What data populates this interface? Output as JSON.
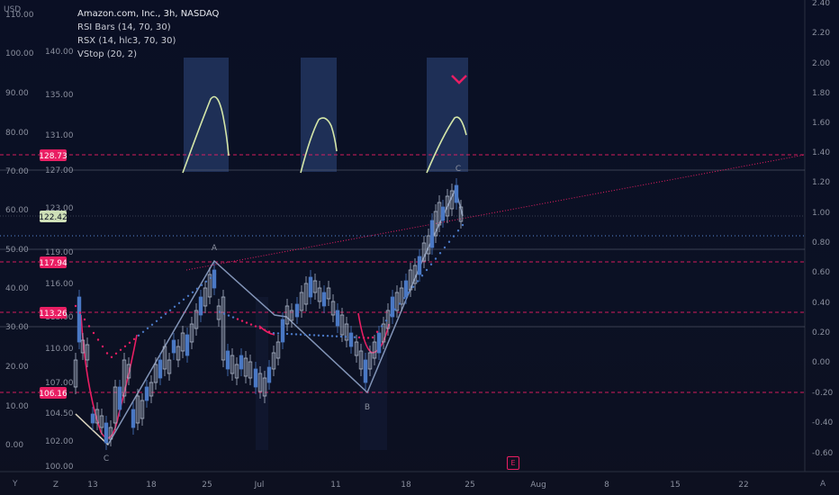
{
  "legend": {
    "title": "Amazon.com, Inc., 3h, NASDAQ",
    "indicators": [
      "RSI Bars (14, 70, 30)",
      "RSX (14, hlc3, 70, 30)",
      "VStop (20, 2)"
    ]
  },
  "currency": "USD",
  "corner_labels": {
    "y": "Y",
    "z": "Z",
    "a": "A"
  },
  "earnings_badge": "E",
  "colors": {
    "background": "#0b1022",
    "accent": "#e91e63",
    "up": "#aab3c6",
    "down": "#4a78c4",
    "rsi_line": "#d4e6a8",
    "highlight": "#24365e"
  },
  "chart_data": {
    "type": "candlestick",
    "price_axis": [
      "140.00",
      "135.00",
      "131.00",
      "127.00",
      "123.00",
      "119.00",
      "116.00",
      "113.00",
      "110.00",
      "107.00",
      "104.50",
      "102.00",
      "100.00"
    ],
    "rsi_axis": [
      "110.00",
      "100.00",
      "90.00",
      "80.00",
      "70.00",
      "60.00",
      "50.00",
      "40.00",
      "30.00",
      "20.00",
      "10.00",
      "0.00"
    ],
    "rsx_axis": [
      "2.40",
      "2.20",
      "2.00",
      "1.80",
      "1.60",
      "1.40",
      "1.20",
      "1.00",
      "0.80",
      "0.60",
      "0.40",
      "0.20",
      "0.00",
      "-0.20",
      "-0.40",
      "-0.60"
    ],
    "x_ticks": [
      "13",
      "Z",
      "18",
      "25",
      "Jul",
      "11",
      "18",
      "25",
      "Aug",
      "8",
      "15",
      "22"
    ],
    "price_tags": [
      {
        "label": "128.73",
        "value": 128.73
      },
      {
        "label": "122.42",
        "value": 122.42
      },
      {
        "label": "117.94",
        "value": 117.94
      },
      {
        "label": "113.26",
        "value": 113.26
      },
      {
        "label": "106.16",
        "value": 106.16
      }
    ],
    "pattern_labels": [
      "C",
      "A",
      "B",
      "C"
    ]
  }
}
